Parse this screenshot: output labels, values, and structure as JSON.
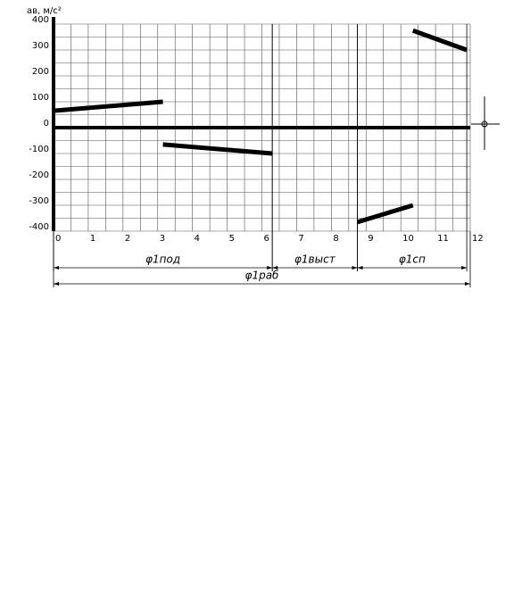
{
  "chart_data": {
    "type": "line",
    "title": "aв, м/с²",
    "series": [
      {
        "color": "#000000",
        "x": [
          0,
          3.15
        ],
        "values": [
          65,
          100
        ]
      },
      {
        "color": "#000000",
        "x": [
          3.15,
          6.3
        ],
        "values": [
          -65,
          -100
        ]
      },
      {
        "color": "#000000",
        "x": [
          8.75,
          10.35
        ],
        "values": [
          -365,
          -300
        ]
      },
      {
        "color": "#000000",
        "x": [
          10.35,
          11.9
        ],
        "values": [
          375,
          300
        ]
      }
    ],
    "xlim": [
      0,
      12
    ],
    "xticks": [
      0,
      1,
      2,
      3,
      4,
      5,
      6,
      7,
      8,
      9,
      10,
      11,
      12
    ],
    "ylim": [
      -400,
      400
    ],
    "yticks": [
      -400,
      -300,
      -200,
      -100,
      0,
      100,
      200,
      300,
      400
    ],
    "grid": true,
    "minor_grid": true,
    "phases": [
      {
        "label": "φ1под",
        "from": 0,
        "to": 6.3
      },
      {
        "label": "φ1выст",
        "from": 6.3,
        "to": 8.75
      },
      {
        "label": "φ1сп",
        "from": 8.75,
        "to": 11.9
      },
      {
        "label": "φ1раб",
        "from": 0,
        "to": 12
      }
    ]
  }
}
